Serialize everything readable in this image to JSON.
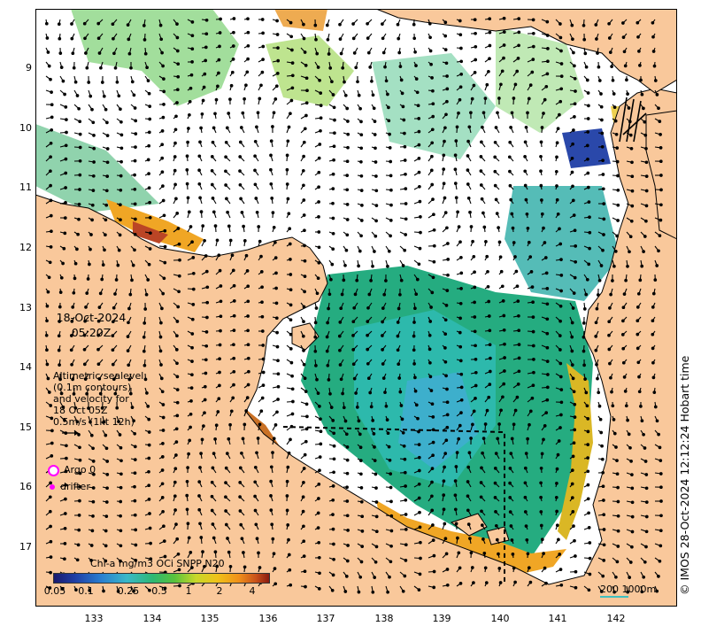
{
  "map": {
    "lat_ticks": [
      "9",
      "10",
      "11",
      "12",
      "13",
      "14",
      "15",
      "16",
      "17"
    ],
    "lon_ticks": [
      "133",
      "134",
      "135",
      "136",
      "137",
      "138",
      "139",
      "140",
      "141",
      "142"
    ],
    "colors": {
      "land": "#f9c89b",
      "ocean_nodata": "#ffffff",
      "coast": "#000000",
      "vector": "#000000"
    }
  },
  "overlay": {
    "date_line1": "18-Oct-2024",
    "date_line2": "05:20Z",
    "altimetry_lines": [
      "Altimetric sealevel",
      "(0.1m contours)",
      "and velocity for",
      "18 Oct 05Z",
      "0.5m/s (1kt 12h)"
    ],
    "argo_label": "Argo 0",
    "drifter_label": "drifter",
    "argo_color": "#ff00ff"
  },
  "colorbar": {
    "title": "Chl-a mg/m3 OCi SNPP N20",
    "ticks": [
      "0.05",
      "0.1",
      "0.25",
      "0.5",
      "1",
      "2",
      "4"
    ]
  },
  "scale": {
    "label": "200  1000m"
  },
  "credit": "© IMOS 28-Oct-2024 12:12:24 Hobart time"
}
